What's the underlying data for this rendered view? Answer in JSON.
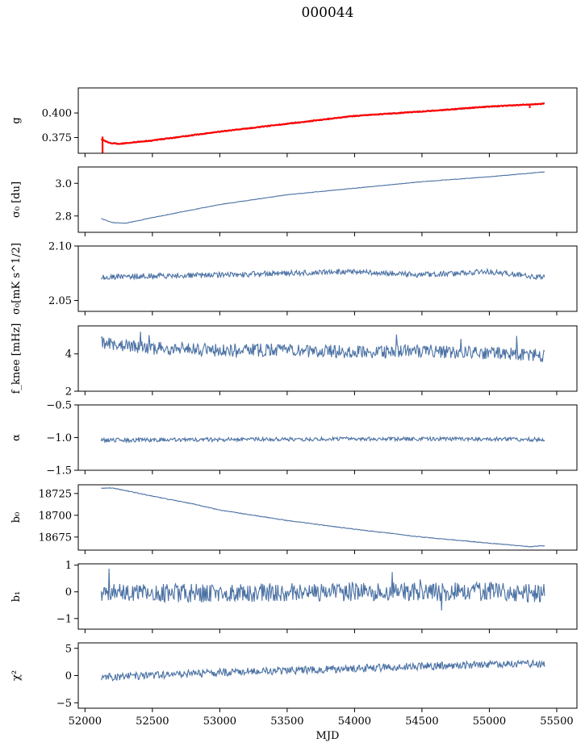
{
  "figure": {
    "title": "000044"
  },
  "colors": {
    "series": "#4c72a4",
    "fit": "#ff0000",
    "axes": "#000000"
  },
  "chart_data": {
    "type": "line",
    "x_domain": [
      52120,
      55410
    ],
    "shared_x": {
      "xlabel": "MJD",
      "xlim": [
        51950,
        55650
      ],
      "ticks": [
        52000,
        52500,
        53000,
        53500,
        54000,
        54500,
        55000,
        55500
      ]
    },
    "panels": [
      {
        "id": "g",
        "ylabel": "g",
        "ylim": [
          0.359,
          0.4255
        ],
        "yticks": [
          0.375,
          0.4
        ],
        "trend": [
          [
            52120,
            0.3735
          ],
          [
            52180,
            0.3695
          ],
          [
            52250,
            0.3685
          ],
          [
            52500,
            0.372
          ],
          [
            53000,
            0.381
          ],
          [
            53500,
            0.389
          ],
          [
            54000,
            0.397
          ],
          [
            54500,
            0.4015
          ],
          [
            55000,
            0.4065
          ],
          [
            55410,
            0.4095
          ]
        ],
        "noise": 0.0008,
        "second_series": "fit"
      },
      {
        "id": "sigma0_du",
        "ylabel": "σ₀ [du]",
        "ylim": [
          2.7,
          3.1
        ],
        "yticks": [
          2.8,
          3.0
        ],
        "trend": [
          [
            52120,
            2.785
          ],
          [
            52200,
            2.76
          ],
          [
            52300,
            2.755
          ],
          [
            52500,
            2.79
          ],
          [
            53000,
            2.87
          ],
          [
            53500,
            2.93
          ],
          [
            54000,
            2.97
          ],
          [
            54500,
            3.01
          ],
          [
            55000,
            3.04
          ],
          [
            55410,
            3.07
          ]
        ],
        "noise": 0.0015
      },
      {
        "id": "sigma0_mK",
        "ylabel": "σ₀[mK s^1/2]",
        "ylim": [
          2.04,
          2.1
        ],
        "yticks": [
          2.05,
          2.1
        ],
        "trend": [
          [
            52120,
            2.0715
          ],
          [
            52500,
            2.0725
          ],
          [
            53000,
            2.0735
          ],
          [
            53500,
            2.075
          ],
          [
            54000,
            2.0765
          ],
          [
            54500,
            2.0735
          ],
          [
            55000,
            2.0765
          ],
          [
            55410,
            2.071
          ]
        ],
        "noise": 0.0025
      },
      {
        "id": "fknee",
        "ylabel": "f_knee [mHz]",
        "ylim": [
          2.0,
          5.5
        ],
        "yticks": [
          2,
          4
        ],
        "trend": [
          [
            52120,
            4.6
          ],
          [
            52500,
            4.3
          ],
          [
            53000,
            4.2
          ],
          [
            53500,
            4.2
          ],
          [
            54000,
            4.1
          ],
          [
            54500,
            4.15
          ],
          [
            55000,
            4.05
          ],
          [
            55410,
            3.9
          ]
        ],
        "noise": 0.35
      },
      {
        "id": "alpha",
        "ylabel": "α",
        "ylim": [
          -1.5,
          -0.5
        ],
        "yticks": [
          -1.5,
          -1.0,
          -0.5
        ],
        "trend": [
          [
            52120,
            -1.04
          ],
          [
            53000,
            -1.03
          ],
          [
            54000,
            -1.02
          ],
          [
            55000,
            -1.02
          ],
          [
            55410,
            -1.03
          ]
        ],
        "noise": 0.03
      },
      {
        "id": "b0",
        "ylabel": "b₀",
        "ylim": [
          18660,
          18735
        ],
        "yticks": [
          18675,
          18700,
          18725
        ],
        "trend": [
          [
            52120,
            18731
          ],
          [
            52200,
            18731.5
          ],
          [
            52500,
            18722
          ],
          [
            52800,
            18713
          ],
          [
            53000,
            18706
          ],
          [
            53500,
            18694
          ],
          [
            54000,
            18684
          ],
          [
            54500,
            18675
          ],
          [
            55000,
            18668
          ],
          [
            55300,
            18664
          ],
          [
            55410,
            18665
          ]
        ],
        "noise": 0.4
      },
      {
        "id": "b1",
        "ylabel": "b₁",
        "ylim": [
          -1.4,
          1.05
        ],
        "yticks": [
          -1,
          0,
          1
        ],
        "trend": [
          [
            52120,
            -0.05
          ],
          [
            53000,
            -0.05
          ],
          [
            54000,
            0.0
          ],
          [
            55000,
            0.0
          ],
          [
            55410,
            -0.05
          ]
        ],
        "noise": 0.35
      },
      {
        "id": "chi2",
        "ylabel": "χ²",
        "ylim": [
          -6,
          6
        ],
        "yticks": [
          -5,
          0,
          5
        ],
        "trend": [
          [
            52120,
            -0.3
          ],
          [
            52500,
            0.0
          ],
          [
            53000,
            0.6
          ],
          [
            53500,
            0.9
          ],
          [
            54000,
            1.3
          ],
          [
            54500,
            1.7
          ],
          [
            55000,
            2.0
          ],
          [
            55410,
            2.2
          ]
        ],
        "noise": 0.7
      }
    ]
  }
}
